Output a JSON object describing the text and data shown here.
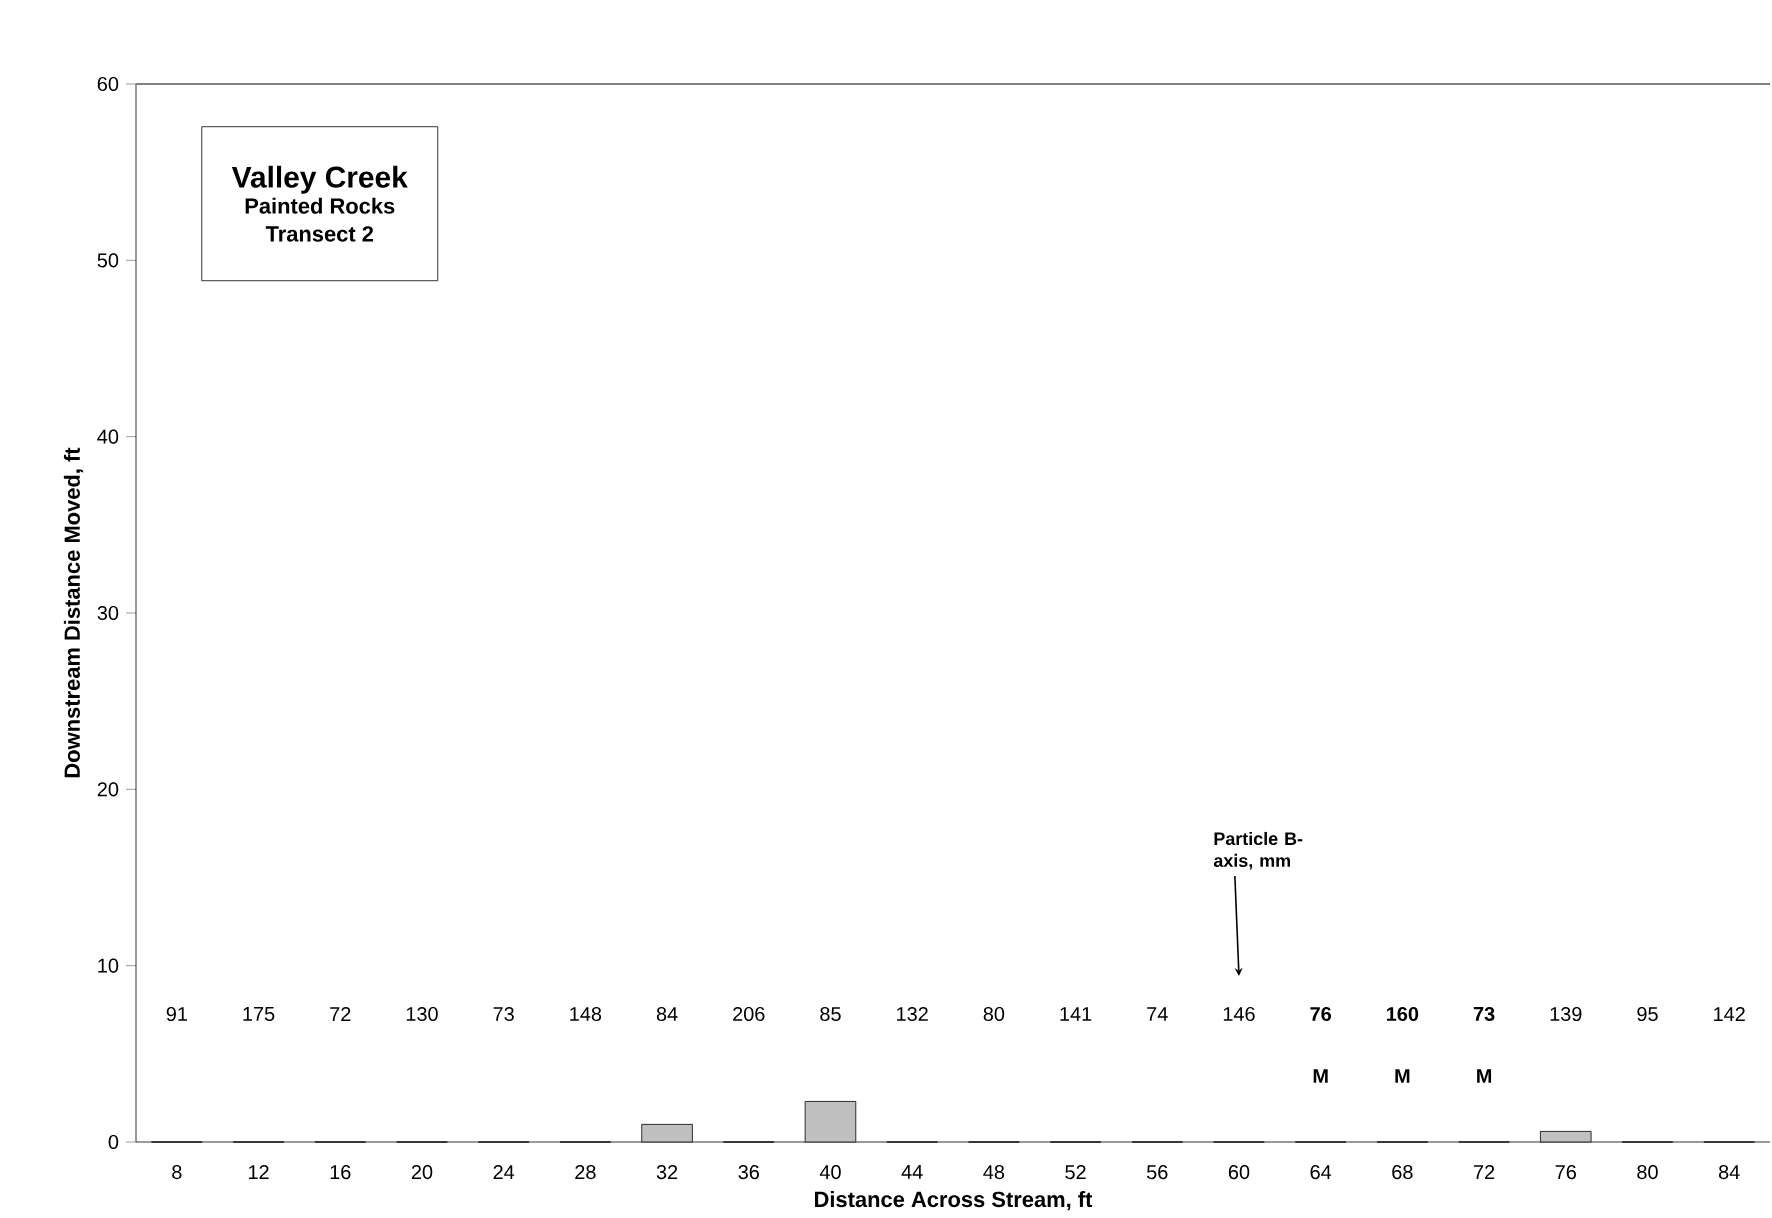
{
  "chart_data": {
    "type": "bar",
    "title": "Valley Creek",
    "subtitle": "Painted Rocks Transect 2",
    "xlabel": "Distance Across Stream, ft",
    "ylabel": "Downstream Distance Moved, ft",
    "categories": [
      "8",
      "12",
      "16",
      "20",
      "24",
      "28",
      "32",
      "36",
      "40",
      "44",
      "48",
      "52",
      "56",
      "60",
      "64",
      "68",
      "72",
      "76",
      "80",
      "84"
    ],
    "values": [
      0,
      0,
      0,
      0,
      0,
      0,
      1,
      0,
      2.3,
      0,
      0,
      0,
      0,
      0,
      0,
      0,
      0,
      0.6,
      0,
      0
    ],
    "color": "#c0c0c0",
    "ylim": [
      0,
      60
    ],
    "yticks": [
      0,
      10,
      20,
      30,
      40,
      50,
      60
    ],
    "grid": false,
    "annotations": [
      "91",
      "175",
      "72",
      "130",
      "73",
      "148",
      "84",
      "206",
      "85",
      "132",
      "80",
      "141",
      "74",
      "146",
      "**76**",
      "**160**",
      "**73**",
      "139",
      "95",
      "142",
      "**M**",
      "**M**",
      "**M**",
      "Particle B-axis, mm"
    ]
  }
}
